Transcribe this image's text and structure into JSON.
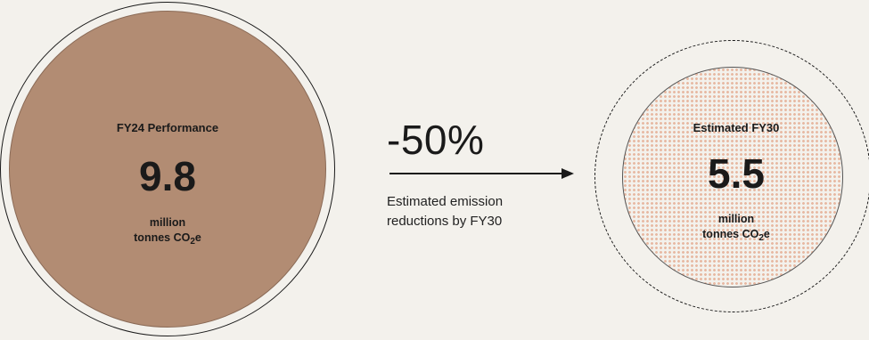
{
  "current": {
    "label": "FY24 Performance",
    "value": "9.8",
    "unit_line1": "million",
    "unit_line2_prefix": "tonnes CO",
    "unit_sub": "2",
    "unit_line2_suffix": "e"
  },
  "change": {
    "percent": "-50%",
    "caption_line1": "Estimated emission",
    "caption_line2": "reductions by FY30"
  },
  "target": {
    "label": "Estimated FY30",
    "value": "5.5",
    "unit_line1": "million",
    "unit_line2_prefix": "tonnes CO",
    "unit_sub": "2",
    "unit_line2_suffix": "e"
  },
  "colors": {
    "background": "#f3f1ec",
    "fy24_fill": "#b28c73",
    "fy30_dots": "#e7b9a3"
  }
}
